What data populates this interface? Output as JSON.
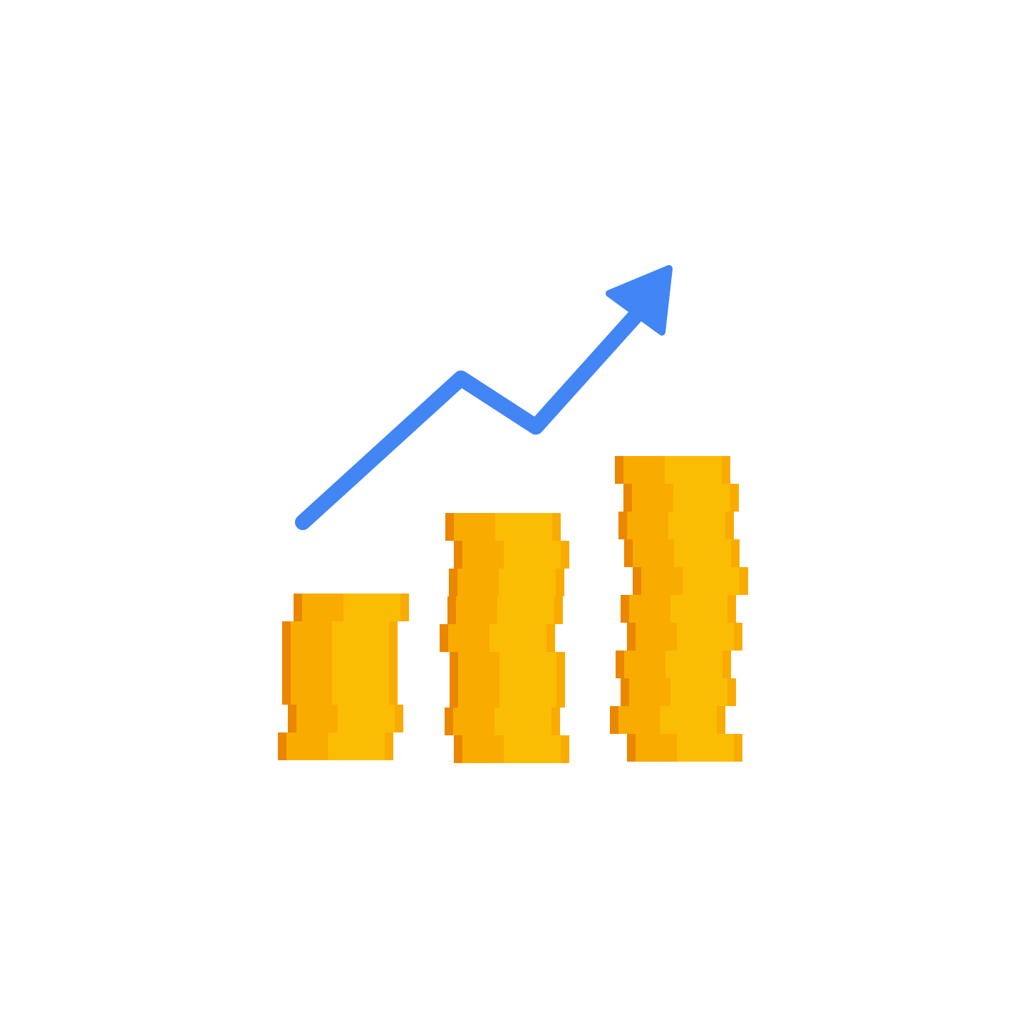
{
  "illustration": {
    "icon": "coin-stacks-growth-icon",
    "description_icon_parts": [
      "trend-arrow-icon",
      "coin-stack-icon"
    ],
    "stacks": [
      {
        "name": "coin-stack-small",
        "coins": 6
      },
      {
        "name": "coin-stack-medium",
        "coins": 9
      },
      {
        "name": "coin-stack-large",
        "coins": 11
      }
    ],
    "colors": {
      "background": "#ffffff",
      "arrow": "#4285F4",
      "coin_left": "#F9AB00",
      "coin_right": "#FBBC04",
      "coin_edge": "#EA8600"
    }
  }
}
